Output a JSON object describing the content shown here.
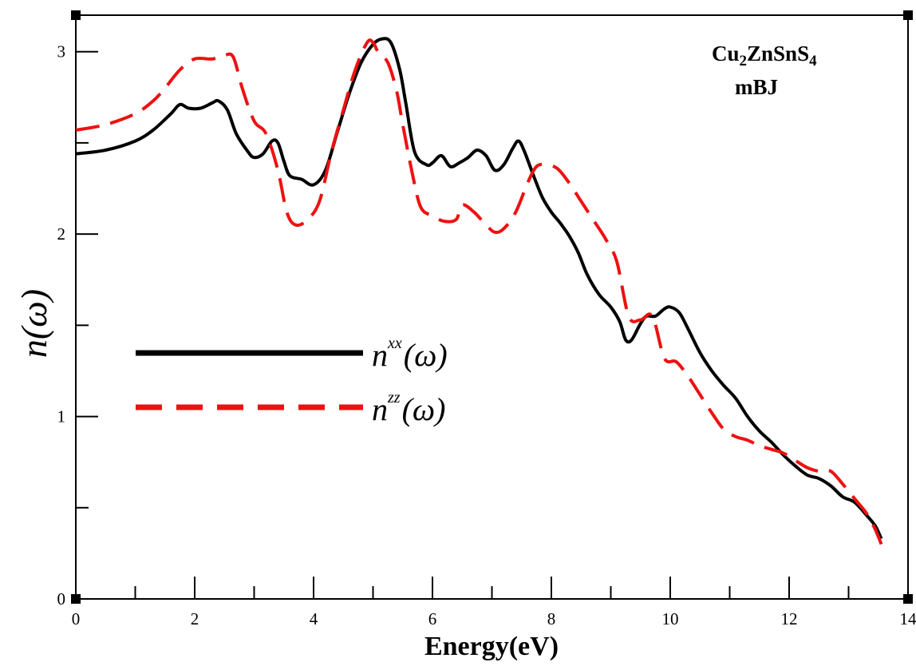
{
  "chart_data": {
    "type": "line",
    "title": "",
    "xlabel": "Energy(eV)",
    "ylabel": "n(ω)",
    "xlim": [
      0,
      14
    ],
    "ylim": [
      0,
      3.2
    ],
    "x_ticks": [
      0,
      2,
      4,
      6,
      8,
      10,
      12,
      14
    ],
    "x_tick_labels": [
      "0",
      "2",
      "4",
      "6",
      "8",
      "10",
      "12",
      "14"
    ],
    "y_ticks": [
      0,
      1,
      2,
      3
    ],
    "y_tick_labels": [
      "0",
      "1",
      "2",
      "3"
    ],
    "grid": false,
    "legend_position": "left-middle",
    "annotation": {
      "material_base": "Cu",
      "material_sub1": "2",
      "material_mid": "ZnSnS",
      "material_sub2": "4",
      "method": "mBJ"
    },
    "series": [
      {
        "name": "n^xx(ω)",
        "legend_base": "n",
        "legend_sup": "xx",
        "legend_tail": "(ω)",
        "color": "#000000",
        "style": "solid",
        "x": [
          0,
          0.5,
          1.0,
          1.3,
          1.6,
          1.75,
          1.9,
          2.1,
          2.3,
          2.4,
          2.55,
          2.7,
          2.9,
          3.0,
          3.15,
          3.3,
          3.4,
          3.5,
          3.6,
          3.8,
          4.0,
          4.2,
          4.4,
          4.6,
          4.8,
          5.0,
          5.15,
          5.3,
          5.45,
          5.55,
          5.7,
          5.9,
          6.0,
          6.15,
          6.3,
          6.45,
          6.6,
          6.75,
          6.9,
          7.05,
          7.2,
          7.35,
          7.45,
          7.55,
          7.7,
          7.85,
          8.0,
          8.15,
          8.3,
          8.45,
          8.6,
          8.8,
          9.0,
          9.15,
          9.25,
          9.35,
          9.5,
          9.6,
          9.75,
          9.9,
          10.0,
          10.15,
          10.3,
          10.5,
          10.7,
          10.9,
          11.1,
          11.3,
          11.5,
          11.7,
          11.9,
          12.1,
          12.3,
          12.5,
          12.7,
          12.9,
          13.1,
          13.3,
          13.45,
          13.55
        ],
        "y": [
          2.44,
          2.46,
          2.51,
          2.57,
          2.66,
          2.71,
          2.69,
          2.69,
          2.72,
          2.73,
          2.68,
          2.55,
          2.45,
          2.42,
          2.44,
          2.51,
          2.5,
          2.4,
          2.32,
          2.3,
          2.27,
          2.35,
          2.56,
          2.77,
          2.94,
          3.04,
          3.07,
          3.05,
          2.9,
          2.72,
          2.45,
          2.38,
          2.39,
          2.43,
          2.37,
          2.39,
          2.42,
          2.46,
          2.43,
          2.35,
          2.38,
          2.47,
          2.51,
          2.45,
          2.32,
          2.2,
          2.12,
          2.06,
          1.99,
          1.9,
          1.78,
          1.67,
          1.6,
          1.52,
          1.42,
          1.42,
          1.51,
          1.55,
          1.55,
          1.59,
          1.6,
          1.57,
          1.48,
          1.35,
          1.25,
          1.17,
          1.1,
          1.0,
          0.92,
          0.86,
          0.79,
          0.73,
          0.68,
          0.66,
          0.62,
          0.56,
          0.53,
          0.46,
          0.4,
          0.33
        ]
      },
      {
        "name": "n^zz(ω)",
        "legend_base": "n",
        "legend_sup": "zz",
        "legend_tail": "(ω)",
        "color": "#ee1111",
        "style": "dashed",
        "x": [
          0,
          0.5,
          1.0,
          1.3,
          1.5,
          1.75,
          2.0,
          2.3,
          2.5,
          2.65,
          2.8,
          3.0,
          3.2,
          3.4,
          3.55,
          3.7,
          3.9,
          4.1,
          4.3,
          4.5,
          4.7,
          4.9,
          5.0,
          5.1,
          5.25,
          5.4,
          5.5,
          5.65,
          5.8,
          6.0,
          6.2,
          6.4,
          6.5,
          6.7,
          6.9,
          7.05,
          7.2,
          7.4,
          7.6,
          7.75,
          7.9,
          8.1,
          8.3,
          8.5,
          8.7,
          8.9,
          9.1,
          9.3,
          9.5,
          9.7,
          9.9,
          10.1,
          10.3,
          10.5,
          10.7,
          10.9,
          11.1,
          11.3,
          11.5,
          11.7,
          11.9,
          12.1,
          12.3,
          12.5,
          12.7,
          12.9,
          13.1,
          13.3,
          13.45,
          13.55
        ],
        "y": [
          2.57,
          2.6,
          2.66,
          2.73,
          2.8,
          2.9,
          2.96,
          2.96,
          2.98,
          2.97,
          2.8,
          2.62,
          2.55,
          2.35,
          2.12,
          2.05,
          2.08,
          2.18,
          2.45,
          2.68,
          2.9,
          3.05,
          3.05,
          2.99,
          2.94,
          2.78,
          2.6,
          2.35,
          2.15,
          2.1,
          2.07,
          2.08,
          2.16,
          2.12,
          2.05,
          2.01,
          2.03,
          2.12,
          2.28,
          2.37,
          2.38,
          2.36,
          2.28,
          2.18,
          2.08,
          1.98,
          1.85,
          1.55,
          1.53,
          1.55,
          1.32,
          1.3,
          1.22,
          1.12,
          1.02,
          0.93,
          0.89,
          0.87,
          0.84,
          0.82,
          0.8,
          0.76,
          0.72,
          0.7,
          0.7,
          0.63,
          0.55,
          0.47,
          0.38,
          0.3
        ]
      }
    ]
  }
}
